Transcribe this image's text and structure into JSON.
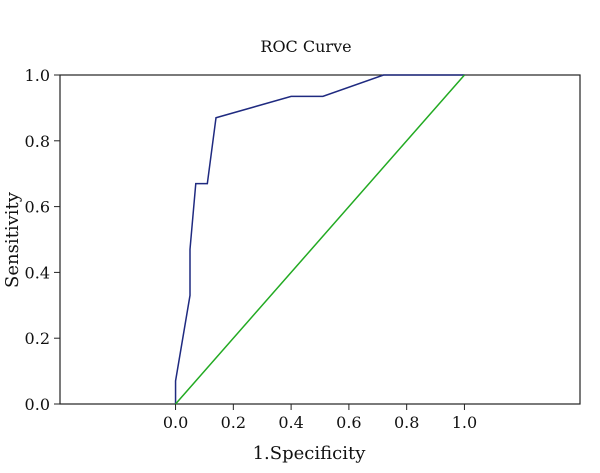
{
  "chart_data": {
    "type": "line",
    "title": "ROC Curve",
    "xlabel": "1.Specificity",
    "ylabel": "Sensitivity",
    "xlim": [
      -0.4,
      1.4
    ],
    "ylim": [
      0,
      1
    ],
    "x_ticks": [
      0.0,
      0.2,
      0.4,
      0.6,
      0.8,
      1.0
    ],
    "x_tick_labels": [
      "0.0",
      "0.2",
      "0.4",
      "0.6",
      "0.8",
      "1.0"
    ],
    "y_ticks": [
      0.0,
      0.2,
      0.4,
      0.6,
      0.8,
      1.0
    ],
    "y_tick_labels": [
      "0.0",
      "0.2",
      "0.4",
      "0.6",
      "0.8",
      "1.0"
    ],
    "grid": false,
    "series": [
      {
        "color": "#1f2a80",
        "x": [
          0.0,
          0.0,
          0.05,
          0.05,
          0.05,
          0.07,
          0.07,
          0.11,
          0.11,
          0.14,
          0.4,
          0.51,
          0.72,
          1.0
        ],
        "y": [
          0.0,
          0.07,
          0.33,
          0.47,
          0.47,
          0.67,
          0.67,
          0.67,
          0.67,
          0.87,
          0.935,
          0.935,
          1.0,
          1.0
        ]
      },
      {
        "color": "#22aa22",
        "x": [
          0.0,
          1.0
        ],
        "y": [
          0.0,
          1.0
        ]
      }
    ]
  }
}
